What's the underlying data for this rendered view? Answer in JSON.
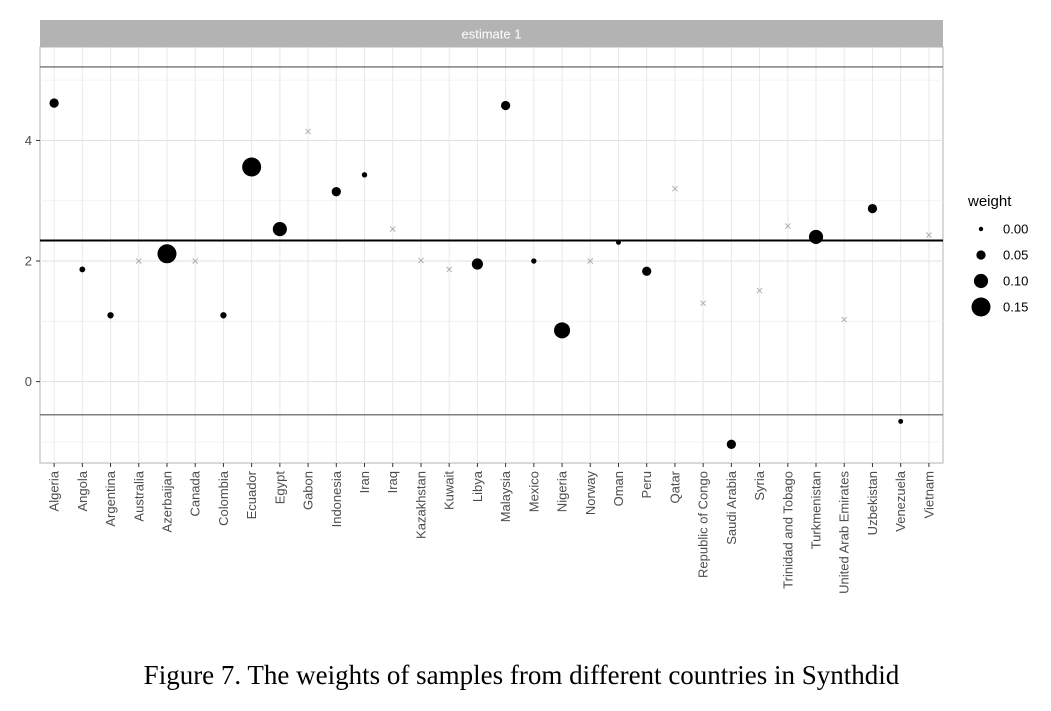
{
  "caption": "Figure 7. The weights of samples from different countries in Synthdid",
  "chart_data": {
    "type": "scatter",
    "facet_label": "estimate 1",
    "x_categories": [
      "Algeria",
      "Angola",
      "Argentina",
      "Australia",
      "Azerbaijan",
      "Canada",
      "Colombia",
      "Ecuador",
      "Egypt",
      "Gabon",
      "Indonesia",
      "Iran",
      "Iraq",
      "Kazakhstan",
      "Kuwait",
      "Libya",
      "Malaysia",
      "Mexico",
      "Nigeria",
      "Norway",
      "Oman",
      "Peru",
      "Qatar",
      "Republic of Congo",
      "Saudi Arabia",
      "Syria",
      "Trinidad and Tobago",
      "Turkmenistan",
      "United Arab Emirates",
      "Uzbekistan",
      "Venezuela",
      "Vietnam"
    ],
    "y_ticks": [
      0,
      2,
      4
    ],
    "ylim": [
      -1.35,
      5.55
    ],
    "points": [
      {
        "country": "Algeria",
        "y": 4.62,
        "weight": 0.05
      },
      {
        "country": "Angola",
        "y": 1.86,
        "weight": 0.015
      },
      {
        "country": "Argentina",
        "y": 1.1,
        "weight": 0.02
      },
      {
        "country": "Australia",
        "y": 2.0,
        "weight": 0
      },
      {
        "country": "Azerbaijan",
        "y": 2.12,
        "weight": 0.15
      },
      {
        "country": "Azerbaijan",
        "y": 2.08,
        "weight": 0
      },
      {
        "country": "Canada",
        "y": 2.0,
        "weight": 0
      },
      {
        "country": "Colombia",
        "y": 1.1,
        "weight": 0.02
      },
      {
        "country": "Ecuador",
        "y": 3.56,
        "weight": 0.15
      },
      {
        "country": "Egypt",
        "y": 2.53,
        "weight": 0.1
      },
      {
        "country": "Gabon",
        "y": 4.15,
        "weight": 0
      },
      {
        "country": "Indonesia",
        "y": 3.15,
        "weight": 0.05
      },
      {
        "country": "Iran",
        "y": 3.43,
        "weight": 0.01
      },
      {
        "country": "Iraq",
        "y": 2.53,
        "weight": 0
      },
      {
        "country": "Kazakhstan",
        "y": 2.01,
        "weight": 0
      },
      {
        "country": "Kuwait",
        "y": 1.86,
        "weight": 0
      },
      {
        "country": "Libya",
        "y": 1.95,
        "weight": 0.07
      },
      {
        "country": "Malaysia",
        "y": 4.58,
        "weight": 0.05
      },
      {
        "country": "Mexico",
        "y": 2.0,
        "weight": 0.01
      },
      {
        "country": "Nigeria",
        "y": 0.85,
        "weight": 0.12
      },
      {
        "country": "Norway",
        "y": 2.0,
        "weight": 0
      },
      {
        "country": "Oman",
        "y": 2.31,
        "weight": 0.005
      },
      {
        "country": "Peru",
        "y": 1.83,
        "weight": 0.05
      },
      {
        "country": "Qatar",
        "y": 3.2,
        "weight": 0
      },
      {
        "country": "Republic of Congo",
        "y": 1.3,
        "weight": 0
      },
      {
        "country": "Saudi Arabia",
        "y": -1.04,
        "weight": 0.05
      },
      {
        "country": "Syria",
        "y": 1.51,
        "weight": 0
      },
      {
        "country": "Trinidad and Tobago",
        "y": 2.58,
        "weight": 0
      },
      {
        "country": "Turkmenistan",
        "y": 2.4,
        "weight": 0.1
      },
      {
        "country": "United Arab Emirates",
        "y": 1.03,
        "weight": 0
      },
      {
        "country": "Uzbekistan",
        "y": 2.87,
        "weight": 0.05
      },
      {
        "country": "Venezuela",
        "y": -0.66,
        "weight": 0.005
      },
      {
        "country": "Vietnam",
        "y": 2.43,
        "weight": 0
      }
    ],
    "hlines": [
      {
        "y": 2.34,
        "style": "estimate"
      },
      {
        "y": 5.22,
        "style": "bound"
      },
      {
        "y": -0.55,
        "style": "bound"
      }
    ],
    "legend": {
      "title": "weight",
      "position": "right",
      "entries": [
        {
          "label": "0.00",
          "weight": 0
        },
        {
          "label": "0.05",
          "weight": 0.05
        },
        {
          "label": "0.10",
          "weight": 0.1
        },
        {
          "label": "0.15",
          "weight": 0.15
        }
      ]
    },
    "grid": true
  }
}
